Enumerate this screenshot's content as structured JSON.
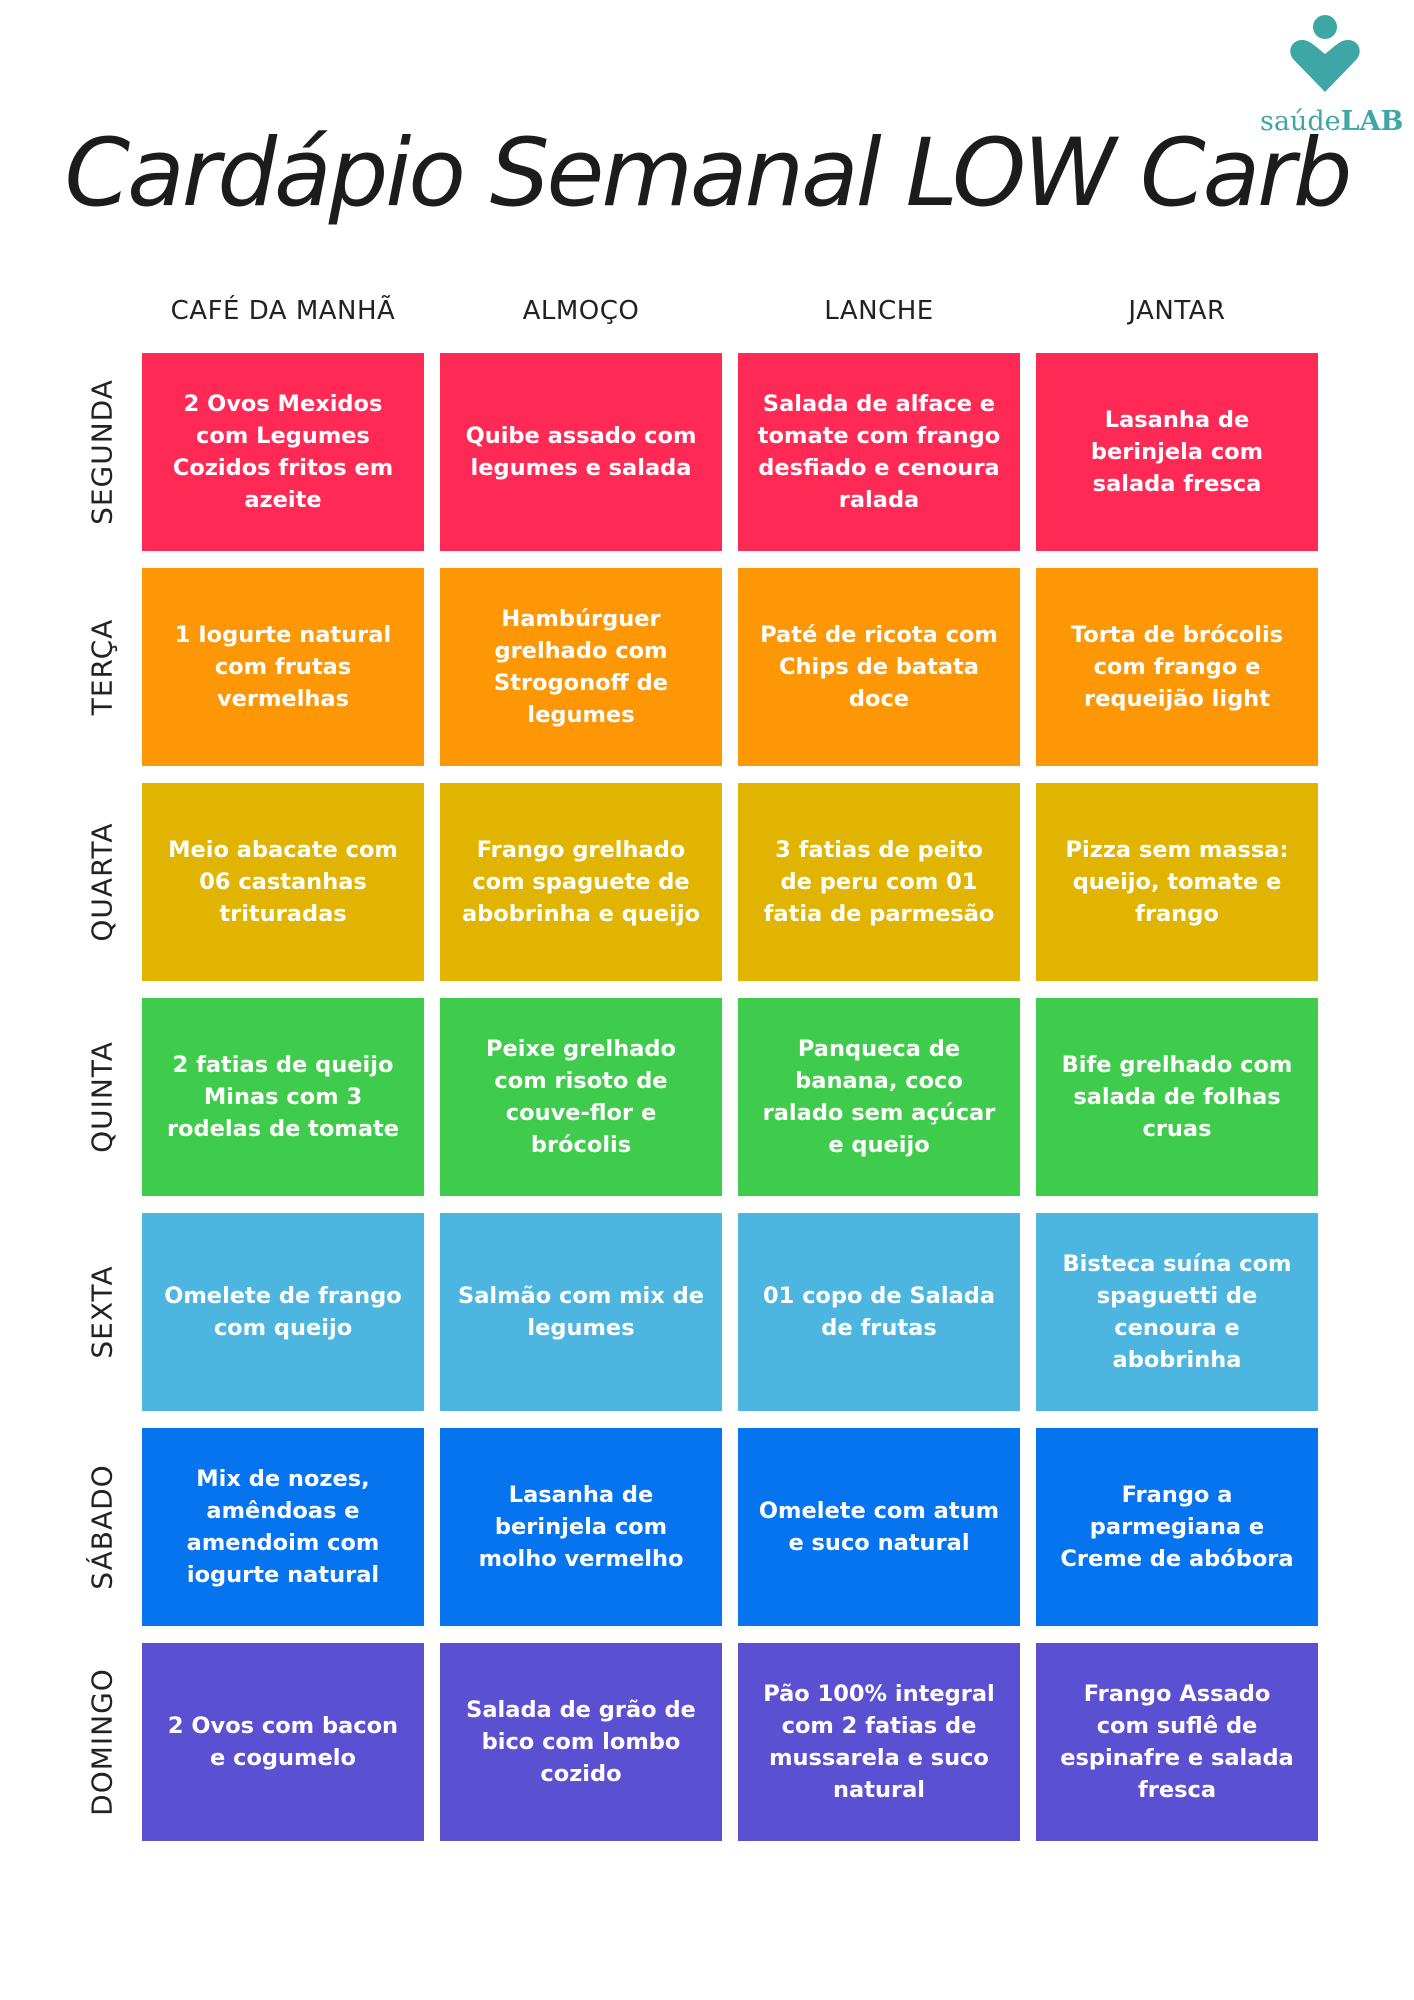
{
  "brand": {
    "name_regular": "saúde",
    "name_bold": "LAB",
    "icon": "heart-person-logo-icon",
    "color": "#3fa6a6"
  },
  "title": "Cardápio Semanal LOW Carb",
  "columns": [
    "CAFÉ DA MANHÃ",
    "ALMOÇO",
    "LANCHE",
    "JANTAR"
  ],
  "days": [
    {
      "label": "SEGUNDA",
      "color": "#fe2a55",
      "meals": [
        "2 Ovos Mexidos com Legumes Cozidos fritos em azeite",
        "Quibe assado com legumes e salada",
        "Salada de alface e tomate com frango desfiado e cenoura ralada",
        "Lasanha de berinjela com salada fresca"
      ]
    },
    {
      "label": "TERÇA",
      "color": "#fe9705",
      "meals": [
        "1 Iogurte natural com frutas vermelhas",
        "Hambúrguer grelhado com Strogonoff de legumes",
        "Paté de ricota com Chips de batata doce",
        "Torta de brócolis com frango e requeijão light"
      ]
    },
    {
      "label": "QUARTA",
      "color": "#e0b400",
      "meals": [
        "Meio abacate com 06 castanhas trituradas",
        "Frango grelhado com spaguete de abobrinha e queijo",
        "3 fatias de peito de peru com 01 fatia de parmesão",
        "Pizza sem massa: queijo, tomate e frango"
      ]
    },
    {
      "label": "QUINTA",
      "color": "#3fcb4c",
      "meals": [
        "2 fatias de queijo Minas  com 3 rodelas de tomate",
        "Peixe grelhado com risoto de couve-flor e brócolis",
        "Panqueca de banana, coco ralado sem açúcar e queijo",
        "Bife grelhado com salada de folhas cruas"
      ]
    },
    {
      "label": "SEXTA",
      "color": "#4cb5e0",
      "meals": [
        "Omelete de frango com queijo",
        "Salmão  com mix de legumes",
        "01 copo de Salada de frutas",
        "Bisteca suína com spaguetti de cenoura e abobrinha"
      ]
    },
    {
      "label": "SÁBADO",
      "color": "#0673ef",
      "meals": [
        "Mix de nozes, amêndoas e amendoim com iogurte natural",
        "Lasanha de berinjela com molho vermelho",
        "Omelete com atum e suco natural",
        "Frango a parmegiana e Creme de abóbora"
      ]
    },
    {
      "label": "DOMINGO",
      "color": "#5b4fd2",
      "meals": [
        "2 Ovos com bacon e cogumelo",
        "Salada de grão de bico com lombo cozido",
        "Pão 100% integral com 2 fatias de mussarela e suco natural",
        "Frango Assado com suflê de espinafre e salada fresca"
      ]
    }
  ]
}
